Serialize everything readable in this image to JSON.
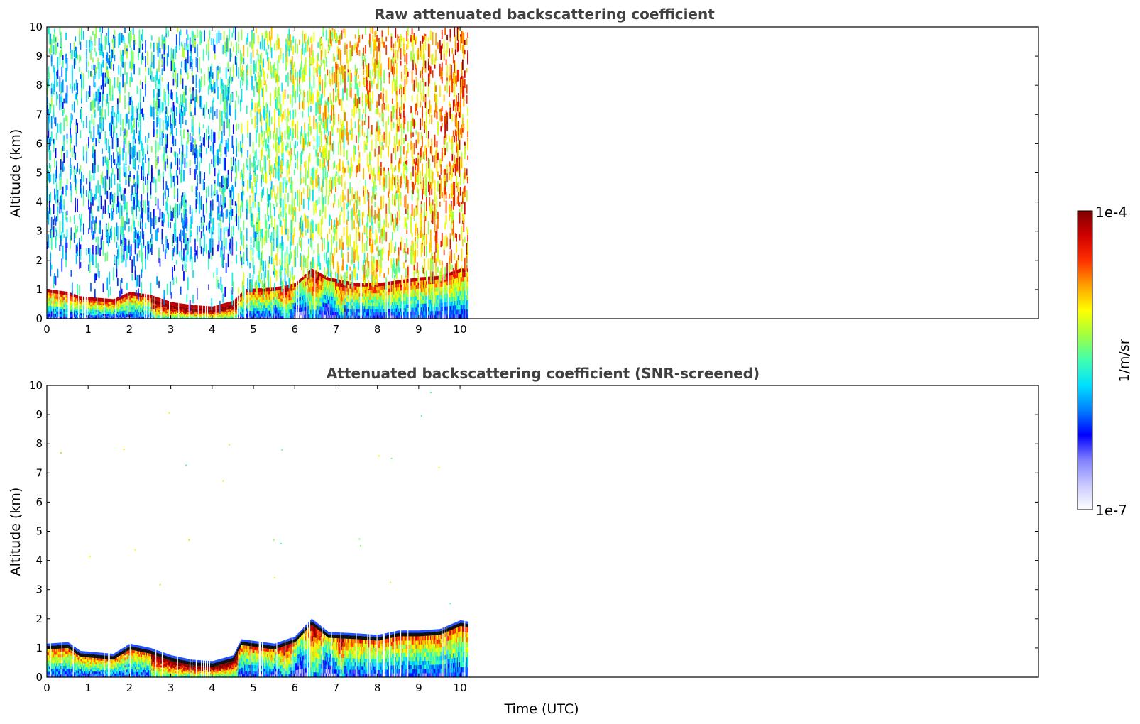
{
  "chart_data": [
    {
      "type": "heatmap",
      "title": "Raw attenuated backscattering coefficient",
      "xlabel": "",
      "ylabel": "Altitude (km)",
      "xlim": [
        0,
        24
      ],
      "ylim": [
        0,
        10
      ],
      "x_ticks": [
        "0",
        "1",
        "2",
        "3",
        "4",
        "5",
        "6",
        "7",
        "8",
        "9",
        "10"
      ],
      "y_ticks": [
        "0",
        "1",
        "2",
        "3",
        "4",
        "5",
        "6",
        "7",
        "8",
        "9",
        "10"
      ],
      "data_time_range": [
        0,
        10.2
      ],
      "layer_top_km": [
        {
          "t": 0,
          "z": 0.9
        },
        {
          "t": 0.5,
          "z": 0.8
        },
        {
          "t": 0.8,
          "z": 0.65
        },
        {
          "t": 1.2,
          "z": 0.6
        },
        {
          "t": 1.6,
          "z": 0.55
        },
        {
          "t": 2.0,
          "z": 0.8
        },
        {
          "t": 2.5,
          "z": 0.7
        },
        {
          "t": 3.0,
          "z": 0.45
        },
        {
          "t": 3.5,
          "z": 0.35
        },
        {
          "t": 4.0,
          "z": 0.3
        },
        {
          "t": 4.5,
          "z": 0.5
        },
        {
          "t": 4.8,
          "z": 0.9
        },
        {
          "t": 5.5,
          "z": 0.95
        },
        {
          "t": 6.0,
          "z": 1.1
        },
        {
          "t": 6.4,
          "z": 1.6
        },
        {
          "t": 6.8,
          "z": 1.3
        },
        {
          "t": 7.5,
          "z": 1.1
        },
        {
          "t": 8.0,
          "z": 1.1
        },
        {
          "t": 8.5,
          "z": 1.2
        },
        {
          "t": 9.0,
          "z": 1.3
        },
        {
          "t": 9.5,
          "z": 1.35
        },
        {
          "t": 10.0,
          "z": 1.6
        },
        {
          "t": 10.2,
          "z": 1.6
        }
      ]
    },
    {
      "type": "heatmap",
      "title": "Attenuated backscattering coefficient (SNR-screened)",
      "xlabel": "Time (UTC)",
      "ylabel": "Altitude (km)",
      "xlim": [
        0,
        24
      ],
      "ylim": [
        0,
        10
      ],
      "x_ticks": [
        "0",
        "1",
        "2",
        "3",
        "4",
        "5",
        "6",
        "7",
        "8",
        "9",
        "10"
      ],
      "y_ticks": [
        "0",
        "1",
        "2",
        "3",
        "4",
        "5",
        "6",
        "7",
        "8",
        "9",
        "10"
      ],
      "data_time_range": [
        0,
        10.2
      ],
      "layer_top_km": [
        {
          "t": 0,
          "z": 0.95
        },
        {
          "t": 0.5,
          "z": 1.0
        },
        {
          "t": 0.8,
          "z": 0.7
        },
        {
          "t": 1.2,
          "z": 0.65
        },
        {
          "t": 1.6,
          "z": 0.6
        },
        {
          "t": 2.0,
          "z": 0.95
        },
        {
          "t": 2.5,
          "z": 0.8
        },
        {
          "t": 3.0,
          "z": 0.55
        },
        {
          "t": 3.5,
          "z": 0.4
        },
        {
          "t": 4.0,
          "z": 0.35
        },
        {
          "t": 4.5,
          "z": 0.55
        },
        {
          "t": 4.7,
          "z": 1.1
        },
        {
          "t": 5.5,
          "z": 0.95
        },
        {
          "t": 6.0,
          "z": 1.2
        },
        {
          "t": 6.4,
          "z": 1.8
        },
        {
          "t": 6.8,
          "z": 1.35
        },
        {
          "t": 7.5,
          "z": 1.3
        },
        {
          "t": 8.0,
          "z": 1.25
        },
        {
          "t": 8.5,
          "z": 1.4
        },
        {
          "t": 9.0,
          "z": 1.4
        },
        {
          "t": 9.5,
          "z": 1.45
        },
        {
          "t": 10.0,
          "z": 1.75
        },
        {
          "t": 10.2,
          "z": 1.7
        }
      ]
    }
  ],
  "colorbar": {
    "label": "1/m/sr",
    "min_label": "1e-7",
    "max_label": "1e-4",
    "scale": "log",
    "colormap": "jet",
    "colors": [
      "#ffffff",
      "#c8c8ff",
      "#8080ff",
      "#0000ff",
      "#0080ff",
      "#00e0ff",
      "#40ffb0",
      "#a0ff40",
      "#ffff00",
      "#ffa000",
      "#ff3000",
      "#d00000",
      "#800000"
    ]
  }
}
